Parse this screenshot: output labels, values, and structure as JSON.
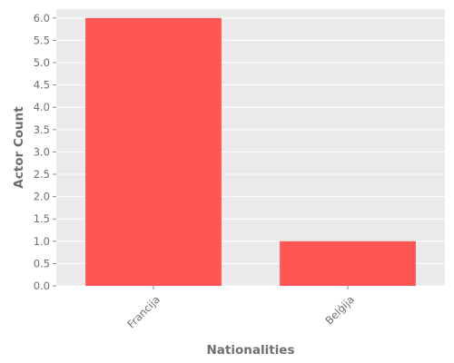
{
  "chart_data": {
    "type": "bar",
    "title": "",
    "xlabel": "Nationalities",
    "ylabel": "Actor Count",
    "categories": [
      "Francija",
      "Belģija"
    ],
    "values": [
      6,
      1
    ],
    "ylim": [
      0,
      6.2
    ],
    "yticks": [
      "0.0",
      "0.5",
      "1.0",
      "1.5",
      "2.0",
      "2.5",
      "3.0",
      "3.5",
      "4.0",
      "4.5",
      "5.0",
      "5.5",
      "6.0"
    ],
    "grid": true,
    "legend": "none",
    "colors": {
      "bar": "#ff5555",
      "plot_background": "#eaeaea",
      "grid": "#ffffff",
      "text": "#6f6f6f"
    }
  }
}
